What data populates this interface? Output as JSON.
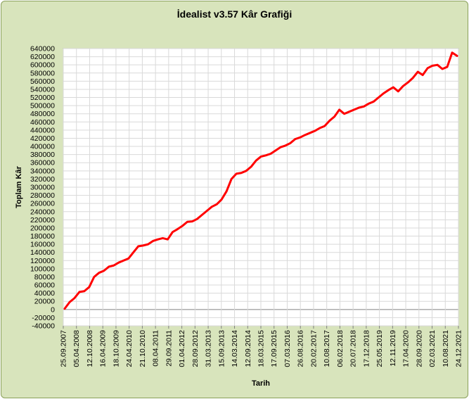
{
  "chart_data": {
    "type": "line",
    "title": "İdealist v3.57 Kâr Grafiği",
    "xlabel": "Tarih",
    "ylabel": "Toplam Kâr",
    "ylim": [
      -40000,
      640000
    ],
    "y_step": 20000,
    "grid": true,
    "legend": "none",
    "x_tick_labels": [
      "25.09.2007",
      "05.04.2008",
      "12.10.2008",
      "16.04.2009",
      "18.10.2009",
      "24.04.2010",
      "21.10.2010",
      "08.04.2011",
      "29.09.2011",
      "01.04.2012",
      "28.09.2012",
      "31.03.2013",
      "15.09.2013",
      "14.03.2014",
      "12.09.2014",
      "18.03.2015",
      "17.09.2015",
      "07.03.2016",
      "26.08.2016",
      "20.02.2017",
      "10.08.2017",
      "06.02.2018",
      "20.07.2018",
      "17.12.2018",
      "25.05.2019",
      "12.11.2019",
      "17.04.2020",
      "28.09.2020",
      "02.03.2021",
      "10.08.2021",
      "24.12.2021"
    ],
    "series": [
      {
        "color": "#ff0000",
        "values": [
          2000,
          18000,
          28000,
          43000,
          45000,
          55000,
          80000,
          90000,
          95000,
          105000,
          108000,
          115000,
          120000,
          125000,
          140000,
          155000,
          157000,
          160000,
          168000,
          172000,
          175000,
          172000,
          190000,
          197000,
          205000,
          215000,
          216000,
          222000,
          232000,
          242000,
          252000,
          258000,
          270000,
          290000,
          320000,
          333000,
          335000,
          340000,
          350000,
          365000,
          375000,
          378000,
          382000,
          390000,
          398000,
          402000,
          408000,
          418000,
          422000,
          428000,
          433000,
          438000,
          445000,
          450000,
          463000,
          473000,
          490000,
          480000,
          485000,
          490000,
          495000,
          498000,
          505000,
          510000,
          520000,
          530000,
          538000,
          545000,
          535000,
          548000,
          557000,
          568000,
          583000,
          575000,
          592000,
          598000,
          600000,
          590000,
          595000,
          630000,
          622000
        ]
      }
    ]
  }
}
